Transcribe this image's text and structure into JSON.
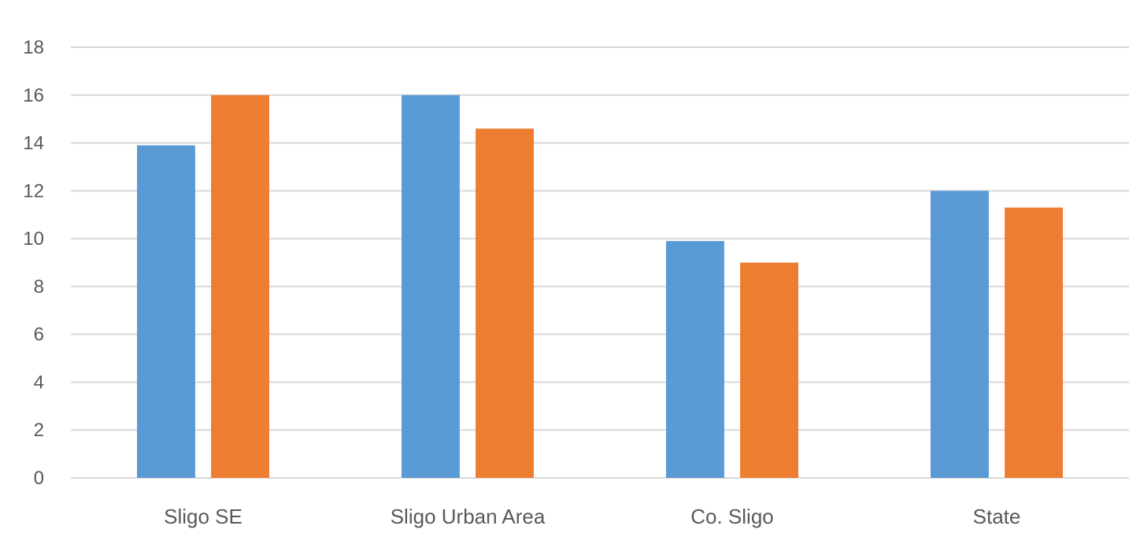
{
  "chart_data": {
    "type": "bar",
    "title": "",
    "xlabel": "",
    "ylabel": "",
    "categories": [
      "Sligo SE",
      "Sligo Urban Area",
      "Co. Sligo",
      "State"
    ],
    "series": [
      {
        "values": [
          13.9,
          16.0,
          9.9,
          12.0
        ],
        "color": "#5B9BD5"
      },
      {
        "values": [
          16.0,
          14.6,
          9.0,
          11.3
        ],
        "color": "#ED7D31"
      }
    ],
    "ylim": [
      0,
      18
    ],
    "yticks": [
      0,
      2,
      4,
      6,
      8,
      10,
      12,
      14,
      16,
      18
    ],
    "grid": true,
    "legend": "none",
    "gridline_color": "#D9D9D9",
    "label_color": "#595959"
  }
}
